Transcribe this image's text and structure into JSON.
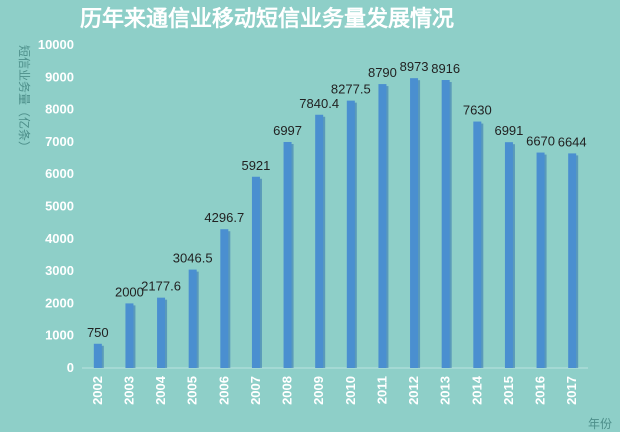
{
  "chart_data": {
    "type": "bar",
    "title": "历年来通信业移动短信业务量发展情况",
    "ylabel": "短信业务量（亿条）",
    "xlabel": "年份",
    "categories": [
      "2002",
      "2003",
      "2004",
      "2005",
      "2006",
      "2007",
      "2008",
      "2009",
      "2010",
      "2011",
      "2012",
      "2013",
      "2014",
      "2015",
      "2016",
      "2017"
    ],
    "series": [
      {
        "values": [
          750,
          2000,
          2177.6,
          3046.5,
          4296.7,
          5921,
          6997,
          7840.4,
          8277.5,
          8790,
          8973,
          8916,
          7630,
          6991,
          6670,
          6644
        ]
      }
    ],
    "data_labels": [
      "750",
      "2000",
      "2177.6",
      "3046.5",
      "4296.7",
      "5921",
      "6997",
      "7840.4",
      "8277.5",
      "8790",
      "8973",
      "8916",
      "7630",
      "6991",
      "6670",
      "6644"
    ],
    "y_ticks": [
      "0",
      "1000",
      "2000",
      "3000",
      "4000",
      "5000",
      "6000",
      "7000",
      "8000",
      "9000",
      "10000"
    ],
    "ylim": [
      0,
      10000
    ],
    "grid": false,
    "colors": {
      "bar": "#4a8fd0",
      "bar_shadow": "#2f6fae",
      "background": "#8ecfc8"
    }
  }
}
